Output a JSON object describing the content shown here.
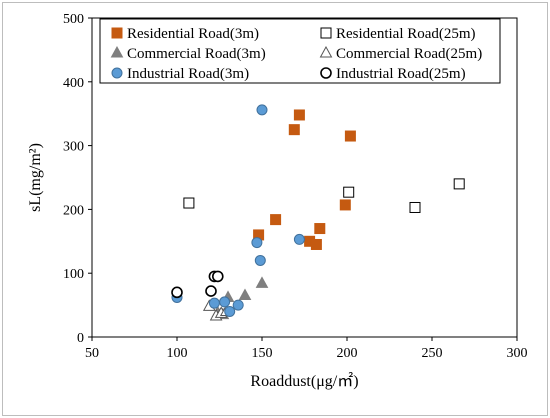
{
  "chart_data": {
    "type": "scatter",
    "title": "",
    "xlabel": "Roaddust(μg/㎡)",
    "ylabel": "sL(mg/m²)",
    "xlim": [
      50,
      300
    ],
    "ylim": [
      0,
      500
    ],
    "xticks": [
      "50",
      "100",
      "150",
      "200",
      "250",
      "300"
    ],
    "yticks": [
      "0",
      "100",
      "200",
      "300",
      "400",
      "500"
    ],
    "grid": false,
    "legend_position": "top",
    "series": [
      {
        "name": "Residential Road(3m)",
        "marker": "square",
        "filled": true,
        "color": "#c55a11",
        "points": [
          [
            148,
            160
          ],
          [
            158,
            184
          ],
          [
            169,
            325
          ],
          [
            172,
            348
          ],
          [
            178,
            150
          ],
          [
            182,
            145
          ],
          [
            184,
            170
          ],
          [
            199,
            207
          ],
          [
            202,
            315
          ]
        ]
      },
      {
        "name": "Residential Road(25m)",
        "marker": "square",
        "filled": false,
        "color": "#000000",
        "points": [
          [
            107,
            210
          ],
          [
            201,
            227
          ],
          [
            240,
            203
          ],
          [
            266,
            240
          ]
        ]
      },
      {
        "name": "Commercial Road(3m)",
        "marker": "triangle",
        "filled": true,
        "color": "#7f7f7f",
        "points": [
          [
            124,
            38
          ],
          [
            127,
            35
          ],
          [
            130,
            62
          ],
          [
            140,
            65
          ],
          [
            150,
            84
          ]
        ]
      },
      {
        "name": "Commercial Road(25m)",
        "marker": "triangle",
        "filled": false,
        "color": "#000000",
        "points": [
          [
            119,
            48
          ],
          [
            123,
            33
          ],
          [
            126,
            37
          ],
          [
            129,
            40
          ]
        ]
      },
      {
        "name": "Industrial Road(3m)",
        "marker": "circle",
        "filled": true,
        "color": "#5b9bd5",
        "points": [
          [
            100,
            62
          ],
          [
            122,
            53
          ],
          [
            128,
            55
          ],
          [
            131,
            40
          ],
          [
            136,
            50
          ],
          [
            147,
            148
          ],
          [
            149,
            120
          ],
          [
            150,
            356
          ],
          [
            172,
            153
          ]
        ]
      },
      {
        "name": "Industrial Road(25m)",
        "marker": "circle",
        "filled": false,
        "color": "#000000",
        "points": [
          [
            100,
            70
          ],
          [
            120,
            72
          ],
          [
            122,
            95
          ],
          [
            124,
            95
          ]
        ]
      }
    ]
  }
}
